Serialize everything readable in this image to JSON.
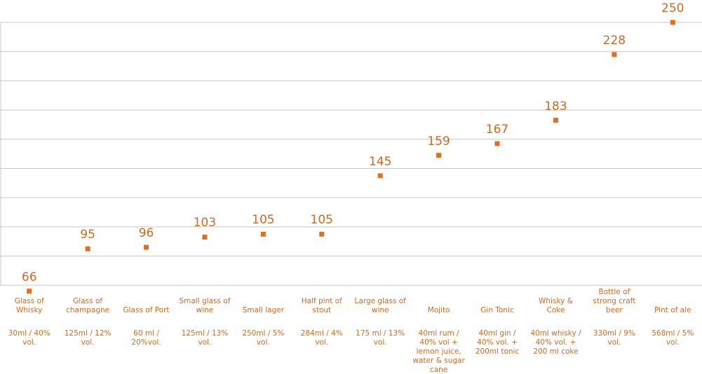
{
  "chart_data": {
    "type": "scatter",
    "categories": [
      "Glass of Whisky",
      "Glass of champagne",
      "Glass of Port",
      "Small glass of wine",
      "Small lager",
      "Half pint of stout",
      "Large glass of wine",
      "Mojito",
      "Gin Tonic",
      "Whisky & Coke",
      "Bottle of strong craft beer",
      "Pint of ale"
    ],
    "descriptions": [
      "30ml / 40% vol.",
      "125ml / 12% vol.",
      "60 ml / 20%vol.",
      "125ml / 13% vol.",
      "250ml / 5% vol.",
      "284ml / 4% vol.",
      "175 ml / 13% vol.",
      "40ml rum / 40% vol + lemon juice, water & sugar cane",
      "40ml gin / 40% vol. + 200ml tonic",
      "40ml whisky / 40% vol. + 200 ml coke",
      "330ml / 9% vol.",
      "568ml / 5% vol."
    ],
    "values": [
      66,
      95,
      96,
      103,
      105,
      105,
      145,
      159,
      167,
      183,
      228,
      250
    ],
    "color": "#e0701e",
    "ylim": [
      50,
      250
    ],
    "yticks": [
      70,
      90,
      110,
      130,
      150,
      170,
      190,
      210,
      230,
      250
    ],
    "grid": true
  }
}
